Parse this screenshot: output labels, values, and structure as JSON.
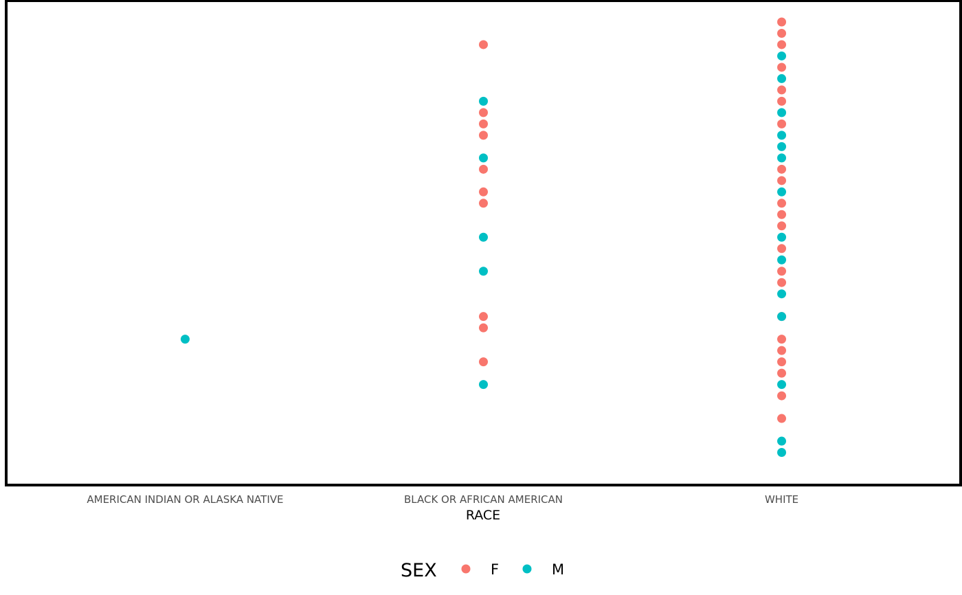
{
  "chart_data": {
    "type": "scatter",
    "xlabel": "RACE",
    "ylabel": "",
    "categories": [
      "AMERICAN INDIAN OR ALASKA NATIVE",
      "BLACK OR AFRICAN AMERICAN",
      "WHITE"
    ],
    "ylim": [
      0,
      41
    ],
    "grid": false,
    "legend": {
      "title": "SEX",
      "position": "bottom",
      "entries": [
        {
          "label": "F",
          "color": "#F8766D"
        },
        {
          "label": "M",
          "color": "#00BFC4"
        }
      ]
    },
    "series": [
      {
        "name": "F",
        "color": "#F8766D",
        "points": [
          {
            "x": "BLACK OR AFRICAN AMERICAN",
            "y": 38
          },
          {
            "x": "BLACK OR AFRICAN AMERICAN",
            "y": 32
          },
          {
            "x": "BLACK OR AFRICAN AMERICAN",
            "y": 31
          },
          {
            "x": "BLACK OR AFRICAN AMERICAN",
            "y": 30
          },
          {
            "x": "BLACK OR AFRICAN AMERICAN",
            "y": 27
          },
          {
            "x": "BLACK OR AFRICAN AMERICAN",
            "y": 25
          },
          {
            "x": "BLACK OR AFRICAN AMERICAN",
            "y": 24
          },
          {
            "x": "BLACK OR AFRICAN AMERICAN",
            "y": 14
          },
          {
            "x": "BLACK OR AFRICAN AMERICAN",
            "y": 13
          },
          {
            "x": "BLACK OR AFRICAN AMERICAN",
            "y": 10
          },
          {
            "x": "WHITE",
            "y": 40
          },
          {
            "x": "WHITE",
            "y": 39
          },
          {
            "x": "WHITE",
            "y": 38
          },
          {
            "x": "WHITE",
            "y": 36
          },
          {
            "x": "WHITE",
            "y": 34
          },
          {
            "x": "WHITE",
            "y": 33
          },
          {
            "x": "WHITE",
            "y": 31
          },
          {
            "x": "WHITE",
            "y": 27
          },
          {
            "x": "WHITE",
            "y": 26
          },
          {
            "x": "WHITE",
            "y": 24
          },
          {
            "x": "WHITE",
            "y": 23
          },
          {
            "x": "WHITE",
            "y": 22
          },
          {
            "x": "WHITE",
            "y": 20
          },
          {
            "x": "WHITE",
            "y": 18
          },
          {
            "x": "WHITE",
            "y": 17
          },
          {
            "x": "WHITE",
            "y": 14
          },
          {
            "x": "WHITE",
            "y": 12
          },
          {
            "x": "WHITE",
            "y": 11
          },
          {
            "x": "WHITE",
            "y": 10
          },
          {
            "x": "WHITE",
            "y": 9
          },
          {
            "x": "WHITE",
            "y": 7
          },
          {
            "x": "WHITE",
            "y": 5
          }
        ]
      },
      {
        "name": "M",
        "color": "#00BFC4",
        "points": [
          {
            "x": "AMERICAN INDIAN OR ALASKA NATIVE",
            "y": 12
          },
          {
            "x": "BLACK OR AFRICAN AMERICAN",
            "y": 33
          },
          {
            "x": "BLACK OR AFRICAN AMERICAN",
            "y": 28
          },
          {
            "x": "BLACK OR AFRICAN AMERICAN",
            "y": 21
          },
          {
            "x": "BLACK OR AFRICAN AMERICAN",
            "y": 18
          },
          {
            "x": "BLACK OR AFRICAN AMERICAN",
            "y": 8
          },
          {
            "x": "WHITE",
            "y": 37
          },
          {
            "x": "WHITE",
            "y": 35
          },
          {
            "x": "WHITE",
            "y": 32
          },
          {
            "x": "WHITE",
            "y": 30
          },
          {
            "x": "WHITE",
            "y": 29
          },
          {
            "x": "WHITE",
            "y": 28
          },
          {
            "x": "WHITE",
            "y": 25
          },
          {
            "x": "WHITE",
            "y": 21
          },
          {
            "x": "WHITE",
            "y": 19
          },
          {
            "x": "WHITE",
            "y": 16
          },
          {
            "x": "WHITE",
            "y": 14
          },
          {
            "x": "WHITE",
            "y": 8
          },
          {
            "x": "WHITE",
            "y": 3
          },
          {
            "x": "WHITE",
            "y": 2
          }
        ]
      }
    ]
  }
}
